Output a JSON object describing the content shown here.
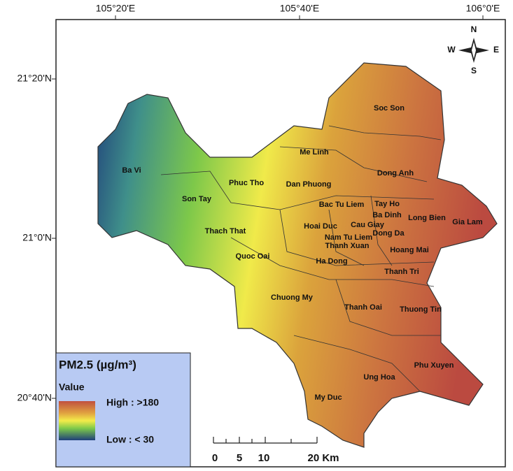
{
  "map": {
    "lon_labels": [
      "105°20'E",
      "105°40'E",
      "106°0'E"
    ],
    "lat_labels": [
      "21°20'N",
      "21°0'N",
      "20°40'N"
    ],
    "districts": [
      "Soc Son",
      "Me Linh",
      "Dong Anh",
      "Ba Vi",
      "Phuc Tho",
      "Dan Phuong",
      "Son Tay",
      "Bac Tu Liem",
      "Tay Ho",
      "Ba Dinh",
      "Long Bien",
      "Gia Lam",
      "Hoai Duc",
      "Cau Giay",
      "Dong Da",
      "Thach That",
      "Nam Tu Liem",
      "Thanh Xuan",
      "Hoang Mai",
      "Quoc Oai",
      "Ha Dong",
      "Thanh Tri",
      "Chuong My",
      "Thanh Oai",
      "Thuong Tin",
      "Phu Xuyen",
      "Ung Hoa",
      "My Duc"
    ],
    "legend": {
      "title": "PM2.5 (µg/m³)",
      "subtitle": "Value",
      "high": "High : >180",
      "low": "Low : < 30"
    },
    "scale_bar": {
      "labels": [
        "0",
        "5",
        "10",
        "20 Km"
      ]
    },
    "compass": {
      "n": "N",
      "s": "S",
      "e": "E",
      "w": "W"
    }
  }
}
